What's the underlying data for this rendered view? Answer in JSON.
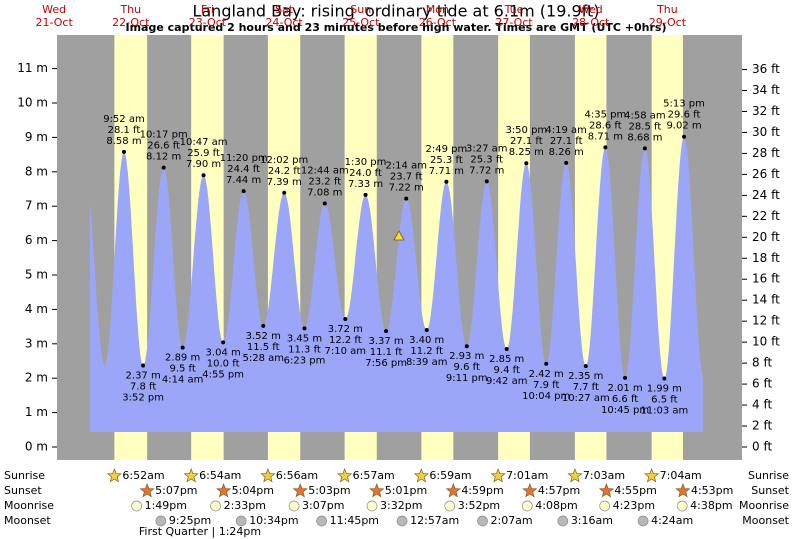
{
  "title": "Langland Bay: rising  ordinary tide at 6.1m (19.9ft)",
  "subtitle": "Image captured 2 hours and 23 minutes before high water. Times are GMT (UTC +0hrs)",
  "y_ticks_m": [
    {
      "value": 0,
      "label": "0 m"
    },
    {
      "value": 1,
      "label": "1 m"
    },
    {
      "value": 2,
      "label": "2 m"
    },
    {
      "value": 3,
      "label": "3 m"
    },
    {
      "value": 4,
      "label": "4 m"
    },
    {
      "value": 5,
      "label": "5 m"
    },
    {
      "value": 6,
      "label": "6 m"
    },
    {
      "value": 7,
      "label": "7 m"
    },
    {
      "value": 8,
      "label": "8 m"
    },
    {
      "value": 9,
      "label": "9 m"
    },
    {
      "value": 10,
      "label": "10 m"
    },
    {
      "value": 11,
      "label": "11 m"
    }
  ],
  "y_ticks_ft": [
    {
      "value": 0,
      "label": "0 ft"
    },
    {
      "value": 2,
      "label": "2 ft"
    },
    {
      "value": 4,
      "label": "4 ft"
    },
    {
      "value": 6,
      "label": "6 ft"
    },
    {
      "value": 8,
      "label": "8 ft"
    },
    {
      "value": 10,
      "label": "10 ft"
    },
    {
      "value": 12,
      "label": "12 ft"
    },
    {
      "value": 14,
      "label": "14 ft"
    },
    {
      "value": 16,
      "label": "16 ft"
    },
    {
      "value": 18,
      "label": "18 ft"
    },
    {
      "value": 20,
      "label": "20 ft"
    },
    {
      "value": 22,
      "label": "22 ft"
    },
    {
      "value": 24,
      "label": "24 ft"
    },
    {
      "value": 26,
      "label": "26 ft"
    },
    {
      "value": 28,
      "label": "28 ft"
    },
    {
      "value": 30,
      "label": "30 ft"
    },
    {
      "value": 32,
      "label": "32 ft"
    },
    {
      "value": 34,
      "label": "34 ft"
    },
    {
      "value": 36,
      "label": "36 ft"
    }
  ],
  "row_labels": [
    "Sunrise",
    "Sunset",
    "Moonrise",
    "Moonset"
  ],
  "moon_phase": "First Quarter | 1:24pm",
  "days": [
    {
      "weekday": "Wed",
      "date": "21-Oct"
    },
    {
      "weekday": "Thu",
      "date": "22-Oct",
      "sunrise": "6:52am",
      "sunset": "5:07pm",
      "moonrise": "1:49pm",
      "moonset": "9:25pm",
      "tides": [
        {
          "time": "9:52 am",
          "ft_label": "28.1 ft",
          "m_label": "8.58 m",
          "height": 8.58
        },
        {
          "time": "3:52 pm",
          "ft_label": "7.8 ft",
          "m_label": "2.37 m",
          "height": 2.37
        },
        {
          "time": "10:17 pm",
          "ft_label": "26.6 ft",
          "m_label": "8.12 m",
          "height": 8.12
        }
      ]
    },
    {
      "weekday": "Fri",
      "date": "23-Oct",
      "sunrise": "6:54am",
      "sunset": "5:04pm",
      "moonrise": "2:33pm",
      "moonset": "10:34pm",
      "tides": [
        {
          "time": "4:14 am",
          "ft_label": "9.5 ft",
          "m_label": "2.89 m",
          "height": 2.89
        },
        {
          "time": "10:47 am",
          "ft_label": "25.9 ft",
          "m_label": "7.90 m",
          "height": 7.9
        },
        {
          "time": "4:55 pm",
          "ft_label": "10.0 ft",
          "m_label": "3.04 m",
          "height": 3.04
        },
        {
          "time": "11:20 pm",
          "ft_label": "24.4 ft",
          "m_label": "7.44 m",
          "height": 7.44
        }
      ]
    },
    {
      "weekday": "Sat",
      "date": "24-Oct",
      "sunrise": "6:56am",
      "sunset": "5:03pm",
      "moonrise": "3:07pm",
      "moonset": "11:45pm",
      "tides": [
        {
          "time": "5:28 am",
          "ft_label": "11.5 ft",
          "m_label": "3.52 m",
          "height": 3.52
        },
        {
          "time": "12:02 pm",
          "ft_label": "24.2 ft",
          "m_label": "7.39 m",
          "height": 7.39
        },
        {
          "time": "6:23 pm",
          "ft_label": "11.3 ft",
          "m_label": "3.45 m",
          "height": 3.45
        }
      ]
    },
    {
      "weekday": "Sun",
      "date": "25-Oct",
      "sunrise": "6:57am",
      "sunset": "5:01pm",
      "moonrise": "3:32pm",
      "moonset": null,
      "tides": [
        {
          "time": "12:44 am",
          "ft_label": "23.2 ft",
          "m_label": "7.08 m",
          "height": 7.08
        },
        {
          "time": "7:10 am",
          "ft_label": "12.2 ft",
          "m_label": "3.72 m",
          "height": 3.72
        },
        {
          "time": "1:30 pm",
          "ft_label": "24.0 ft",
          "m_label": "7.33 m",
          "height": 7.33
        },
        {
          "time": "7:56 pm",
          "ft_label": "11.1 ft",
          "m_label": "3.37 m",
          "height": 3.37
        }
      ]
    },
    {
      "weekday": "Mon",
      "date": "26-Oct",
      "sunrise": "6:59am",
      "sunset": "4:59pm",
      "moonrise": "3:52pm",
      "moonset": "12:57am",
      "tides": [
        {
          "time": "2:14 am",
          "ft_label": "23.7 ft",
          "m_label": "7.22 m",
          "height": 7.22
        },
        {
          "time": "8:39 am",
          "ft_label": "11.2 ft",
          "m_label": "3.40 m",
          "height": 3.4
        },
        {
          "time": "2:49 pm",
          "ft_label": "25.3 ft",
          "m_label": "7.71 m",
          "height": 7.71
        },
        {
          "time": "9:11 pm",
          "ft_label": "9.6 ft",
          "m_label": "2.93 m",
          "height": 2.93
        }
      ]
    },
    {
      "weekday": "Tue",
      "date": "27-Oct",
      "sunrise": "7:01am",
      "sunset": "4:57pm",
      "moonrise": "4:08pm",
      "moonset": "2:07am",
      "tides": [
        {
          "time": "3:27 am",
          "ft_label": "25.3 ft",
          "m_label": "7.72 m",
          "height": 7.72
        },
        {
          "time": "9:42 am",
          "ft_label": "9.4 ft",
          "m_label": "2.85 m",
          "height": 2.85
        },
        {
          "time": "3:50 pm",
          "ft_label": "27.1 ft",
          "m_label": "8.25 m",
          "height": 8.25
        },
        {
          "time": "10:04 pm",
          "ft_label": "7.9 ft",
          "m_label": "2.42 m",
          "height": 2.42
        }
      ]
    },
    {
      "weekday": "Wed",
      "date": "28-Oct",
      "sunrise": "7:03am",
      "sunset": "4:55pm",
      "moonrise": "4:23pm",
      "moonset": "3:16am",
      "tides": [
        {
          "time": "4:19 am",
          "ft_label": "27.1 ft",
          "m_label": "8.26 m",
          "height": 8.26
        },
        {
          "time": "10:27 am",
          "ft_label": "7.7 ft",
          "m_label": "2.35 m",
          "height": 2.35
        },
        {
          "time": "4:35 pm",
          "ft_label": "28.6 ft",
          "m_label": "8.71 m",
          "height": 8.71
        },
        {
          "time": "10:45 pm",
          "ft_label": "6.6 ft",
          "m_label": "2.01 m",
          "height": 2.01
        }
      ]
    },
    {
      "weekday": "Thu",
      "date": "29-Oct",
      "sunrise": "7:04am",
      "sunset": "4:53pm",
      "moonrise": "4:38pm",
      "moonset": "4:24am",
      "tides": [
        {
          "time": "4:58 am",
          "ft_label": "28.5 ft",
          "m_label": "8.68 m",
          "height": 8.68
        },
        {
          "time": "11:03 am",
          "ft_label": "6.5 ft",
          "m_label": "1.99 m",
          "height": 1.99
        },
        {
          "time": "5:13 pm",
          "ft_label": "29.6 ft",
          "m_label": "9.02 m",
          "height": 9.02
        }
      ]
    }
  ]
}
